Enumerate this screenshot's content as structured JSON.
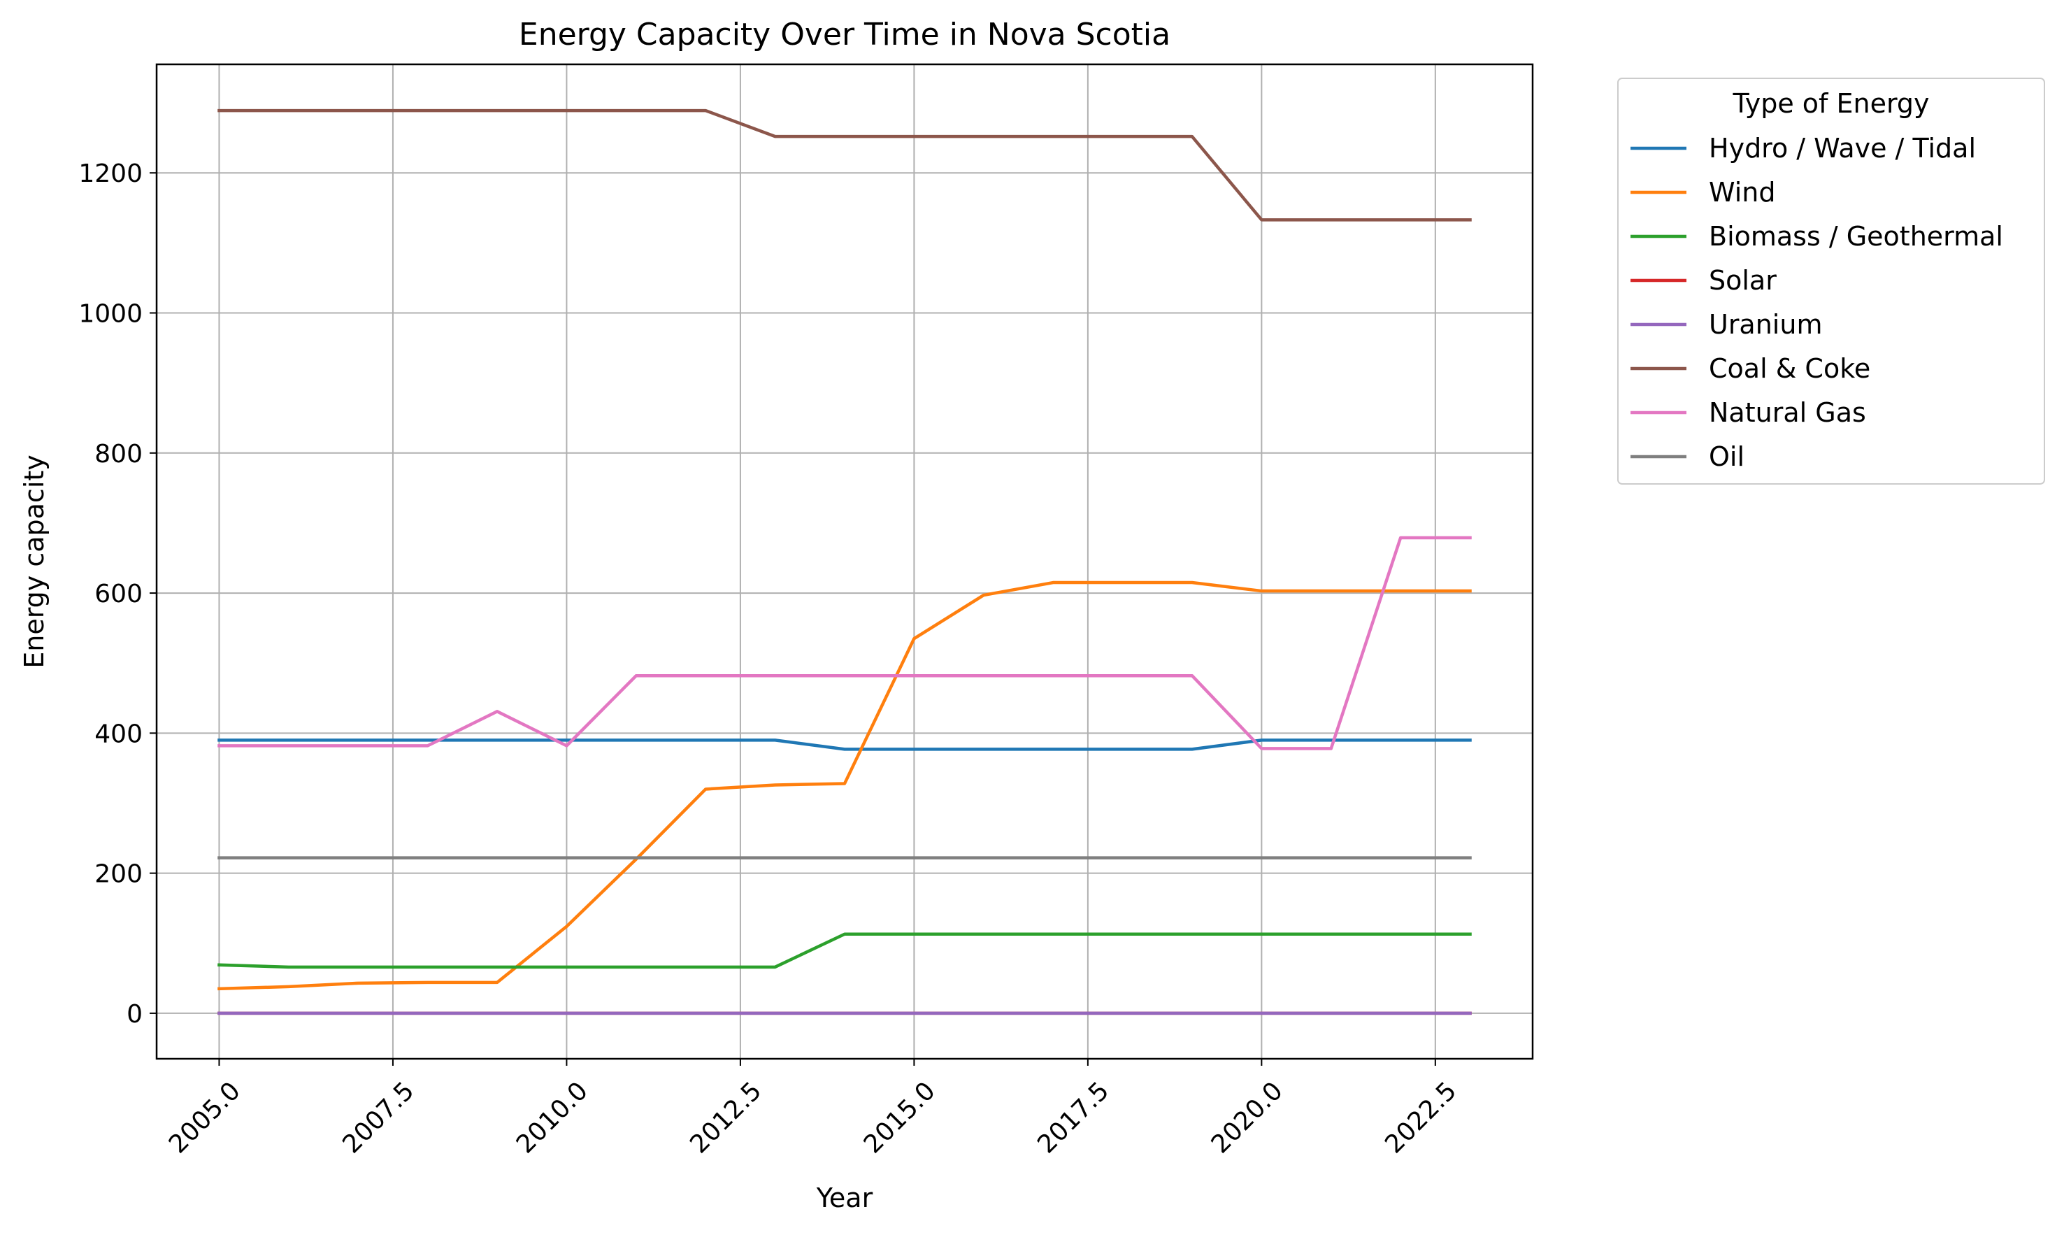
{
  "chart_data": {
    "type": "line",
    "title": "Energy Capacity Over Time in Nova Scotia",
    "xlabel": "Year",
    "ylabel": "Energy capacity",
    "xlim": [
      2004.1,
      2023.9
    ],
    "ylim": [
      -65,
      1355
    ],
    "xticks": [
      2005.0,
      2007.5,
      2010.0,
      2012.5,
      2015.0,
      2017.5,
      2020.0,
      2022.5
    ],
    "xtick_labels": [
      "2005.0",
      "2007.5",
      "2010.0",
      "2012.5",
      "2015.0",
      "2017.5",
      "2020.0",
      "2022.5"
    ],
    "yticks": [
      0,
      200,
      400,
      600,
      800,
      1000,
      1200
    ],
    "ytick_labels": [
      "0",
      "200",
      "400",
      "600",
      "800",
      "1000",
      "1200"
    ],
    "grid": true,
    "legend": {
      "title": "Type of Energy",
      "placement": "outside-top-right"
    },
    "x": [
      2005,
      2006,
      2007,
      2008,
      2009,
      2010,
      2011,
      2012,
      2013,
      2014,
      2015,
      2016,
      2017,
      2018,
      2019,
      2020,
      2021,
      2022,
      2023
    ],
    "series": [
      {
        "name": "Hydro / Wave / Tidal",
        "color": "#1f77b4",
        "values": [
          390,
          390,
          390,
          390,
          390,
          390,
          390,
          390,
          390,
          377,
          377,
          377,
          377,
          377,
          377,
          390,
          390,
          390,
          390
        ]
      },
      {
        "name": "Wind",
        "color": "#ff7f0e",
        "values": [
          35,
          38,
          43,
          44,
          44,
          124,
          220,
          320,
          326,
          328,
          535,
          597,
          615,
          615,
          615,
          603,
          603,
          603,
          603
        ]
      },
      {
        "name": "Biomass / Geothermal",
        "color": "#2ca02c",
        "values": [
          69,
          66,
          66,
          66,
          66,
          66,
          66,
          66,
          66,
          113,
          113,
          113,
          113,
          113,
          113,
          113,
          113,
          113,
          113
        ]
      },
      {
        "name": "Solar",
        "color": "#d62728",
        "values": [
          0,
          0,
          0,
          0,
          0,
          0,
          0,
          0,
          0,
          0,
          0,
          0,
          0,
          0,
          0,
          0,
          0,
          0,
          0
        ]
      },
      {
        "name": "Uranium",
        "color": "#9467bd",
        "values": [
          0,
          0,
          0,
          0,
          0,
          0,
          0,
          0,
          0,
          0,
          0,
          0,
          0,
          0,
          0,
          0,
          0,
          0,
          0
        ]
      },
      {
        "name": "Coal & Coke",
        "color": "#8c564b",
        "values": [
          1289,
          1289,
          1289,
          1289,
          1289,
          1289,
          1289,
          1289,
          1252,
          1252,
          1252,
          1252,
          1252,
          1252,
          1252,
          1133,
          1133,
          1133,
          1133
        ]
      },
      {
        "name": "Natural Gas",
        "color": "#e377c2",
        "values": [
          382,
          382,
          382,
          382,
          431,
          382,
          482,
          482,
          482,
          482,
          482,
          482,
          482,
          482,
          482,
          378,
          378,
          679,
          679
        ]
      },
      {
        "name": "Oil",
        "color": "#7f7f7f",
        "values": [
          222,
          222,
          222,
          222,
          222,
          222,
          222,
          222,
          222,
          222,
          222,
          222,
          222,
          222,
          222,
          222,
          222,
          222,
          222
        ]
      }
    ]
  }
}
